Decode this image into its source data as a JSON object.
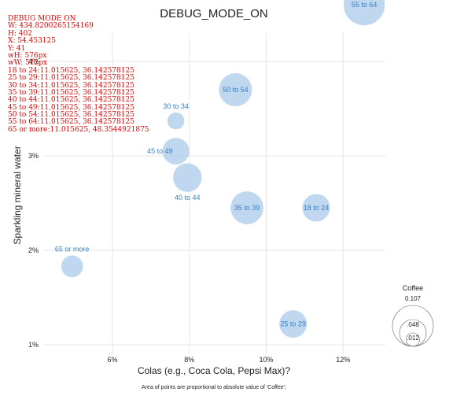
{
  "debug": {
    "lines": [
      "DEBUG MODE ON",
      "W: 434.8200265154169",
      "H: 402",
      "X: 54.453125",
      "Y: 41",
      "wH: 576px",
      "wW: 512px",
      "18 to 24:11.015625, 36.142578125",
      "25 to 29:11.015625, 36.142578125",
      "30 to 34:11.015625, 36.142578125",
      "35 to 39:11.015625, 36.142578125",
      "40 to 44:11.015625, 36.142578125",
      "45 to 49:11.015625, 36.142578125",
      "50 to 54:11.015625, 36.142578125",
      "55 to 64:11.015625, 36.142578125",
      "65 or more:11.015625, 48.3544921875"
    ]
  },
  "colors": {
    "bubble": "#a9c9ea",
    "label": "#3a7fc8",
    "debug": "#e00000",
    "grid": "#e6e6e6"
  },
  "chart_data": {
    "type": "scatter",
    "title": "DEBUG_MODE_ON",
    "xlabel": "Colas (e.g., Coca Cola, Pepsi Max)?",
    "ylabel": "Sparkling mineral water",
    "caption": "Area of points are proportional to absolute value of 'Coffee';",
    "x_ticks": [
      "6%",
      "8%",
      "10%",
      "12%"
    ],
    "x_tick_values": [
      6,
      8,
      10,
      12
    ],
    "y_ticks": [
      "1%",
      "2%",
      "3%",
      "4%"
    ],
    "y_tick_values": [
      1,
      2,
      3,
      4
    ],
    "xlim": [
      4.2,
      13.1
    ],
    "ylim": [
      0.9,
      4.3
    ],
    "size_legend": {
      "title": "Coffee",
      "values": [
        0.107,
        0.048,
        0.012
      ],
      "labels": [
        "0.107",
        ".048",
        ".012"
      ]
    },
    "points": [
      {
        "label": "18 to 24",
        "x": 11.3,
        "y": 2.45,
        "size": 0.048,
        "label_pos": "center"
      },
      {
        "label": "25 to 29",
        "x": 10.7,
        "y": 1.22,
        "size": 0.048,
        "label_pos": "center"
      },
      {
        "label": "30 to 34",
        "x": 7.65,
        "y": 3.37,
        "size": 0.018,
        "label_pos": "above"
      },
      {
        "label": "35 to 39",
        "x": 9.5,
        "y": 2.45,
        "size": 0.068,
        "label_pos": "center"
      },
      {
        "label": "40 to 44",
        "x": 7.95,
        "y": 2.77,
        "size": 0.052,
        "label_pos": "below"
      },
      {
        "label": "45 to 49",
        "x": 7.65,
        "y": 3.05,
        "size": 0.045,
        "label_pos": "left"
      },
      {
        "label": "50 to 54",
        "x": 9.2,
        "y": 3.7,
        "size": 0.069,
        "label_pos": "center"
      },
      {
        "label": "55 to 64",
        "x": 12.55,
        "y": 4.6,
        "size": 0.107,
        "label_pos": "center"
      },
      {
        "label": "65 or more",
        "x": 4.95,
        "y": 1.83,
        "size": 0.03,
        "label_pos": "above"
      }
    ]
  }
}
